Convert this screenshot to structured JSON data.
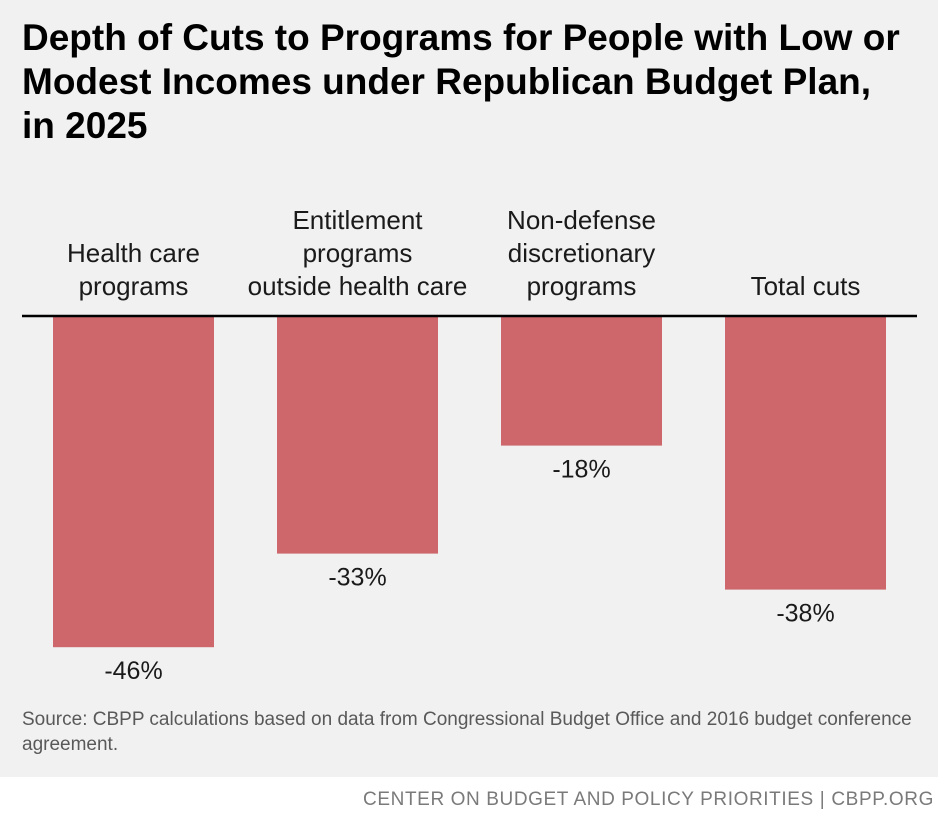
{
  "chart_data": {
    "type": "bar",
    "title": "Depth of Cuts to Programs for People with Low or Modest Incomes under Republican Budget Plan, in 2025",
    "categories": [
      [
        "Health care",
        "programs"
      ],
      [
        "Entitlement",
        "programs",
        "outside health care"
      ],
      [
        "Non-defense",
        "discretionary",
        "programs"
      ],
      [
        "Total cuts"
      ]
    ],
    "values": [
      -46,
      -33,
      -18,
      -38
    ],
    "value_labels": [
      "-46%",
      "-33%",
      "-18%",
      "-38%"
    ],
    "ylim": [
      -50,
      0
    ],
    "xlabel": "",
    "ylabel": "",
    "bar_color": "#cd676b",
    "axis_color": "#000000",
    "grid": false
  },
  "source": "Source: CBPP calculations based on data from Congressional Budget Office and 2016 budget conference agreement.",
  "footer": {
    "org": "CENTER ON BUDGET AND POLICY PRIORITIES",
    "separator": "|",
    "site": "CBPP.ORG"
  },
  "colors": {
    "panel_background": "#f1f1f1",
    "source_text": "#595959",
    "footer_text": "#7a7a7a"
  }
}
